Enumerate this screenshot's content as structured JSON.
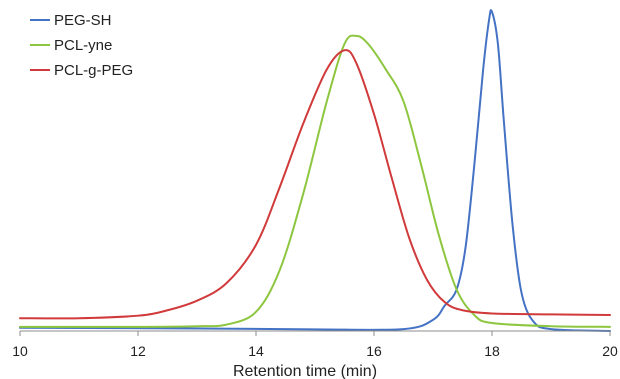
{
  "chart_data": {
    "type": "line",
    "title": "",
    "xlabel": "Retention time (min)",
    "ylabel": "",
    "xlim": [
      10,
      20
    ],
    "ylim": [
      0,
      1.0
    ],
    "xticks": [
      10,
      12,
      14,
      16,
      18,
      20
    ],
    "xtick_labels": [
      "10",
      "12",
      "14",
      "16",
      "18",
      "20"
    ],
    "yaxis_visible": false,
    "grid": false,
    "legend_position": "top-left",
    "series": [
      {
        "name": "PEG-SH",
        "color": "#4472C4",
        "points": [
          [
            10,
            0.01
          ],
          [
            13,
            0.008
          ],
          [
            15,
            0.005
          ],
          [
            16.5,
            0.006
          ],
          [
            17.0,
            0.035
          ],
          [
            17.2,
            0.08
          ],
          [
            17.4,
            0.13
          ],
          [
            17.55,
            0.26
          ],
          [
            17.7,
            0.52
          ],
          [
            17.85,
            0.82
          ],
          [
            17.95,
            0.975
          ],
          [
            18.0,
            1.0
          ],
          [
            18.1,
            0.9
          ],
          [
            18.2,
            0.66
          ],
          [
            18.35,
            0.33
          ],
          [
            18.5,
            0.12
          ],
          [
            18.7,
            0.03
          ],
          [
            19.0,
            0.006
          ],
          [
            20,
            0.0
          ]
        ]
      },
      {
        "name": "PCL-yne",
        "color": "#8DC63F",
        "points": [
          [
            10,
            0.013
          ],
          [
            12,
            0.013
          ],
          [
            13,
            0.015
          ],
          [
            13.5,
            0.02
          ],
          [
            14.0,
            0.06
          ],
          [
            14.4,
            0.19
          ],
          [
            14.8,
            0.43
          ],
          [
            15.2,
            0.72
          ],
          [
            15.5,
            0.9
          ],
          [
            15.7,
            0.925
          ],
          [
            15.9,
            0.9
          ],
          [
            16.2,
            0.82
          ],
          [
            16.5,
            0.72
          ],
          [
            16.8,
            0.52
          ],
          [
            17.1,
            0.3
          ],
          [
            17.4,
            0.13
          ],
          [
            17.7,
            0.05
          ],
          [
            18.0,
            0.025
          ],
          [
            19.0,
            0.015
          ],
          [
            20,
            0.013
          ]
        ]
      },
      {
        "name": "PCL-g-PEG",
        "color": "#D13A3A",
        "points": [
          [
            10,
            0.04
          ],
          [
            11,
            0.04
          ],
          [
            12,
            0.048
          ],
          [
            12.5,
            0.065
          ],
          [
            13.0,
            0.095
          ],
          [
            13.5,
            0.15
          ],
          [
            14.0,
            0.27
          ],
          [
            14.4,
            0.45
          ],
          [
            14.8,
            0.65
          ],
          [
            15.2,
            0.82
          ],
          [
            15.5,
            0.88
          ],
          [
            15.7,
            0.84
          ],
          [
            16.0,
            0.68
          ],
          [
            16.3,
            0.48
          ],
          [
            16.6,
            0.29
          ],
          [
            16.9,
            0.16
          ],
          [
            17.2,
            0.09
          ],
          [
            17.5,
            0.065
          ],
          [
            18.0,
            0.055
          ],
          [
            19.0,
            0.052
          ],
          [
            20,
            0.05
          ]
        ]
      }
    ]
  }
}
